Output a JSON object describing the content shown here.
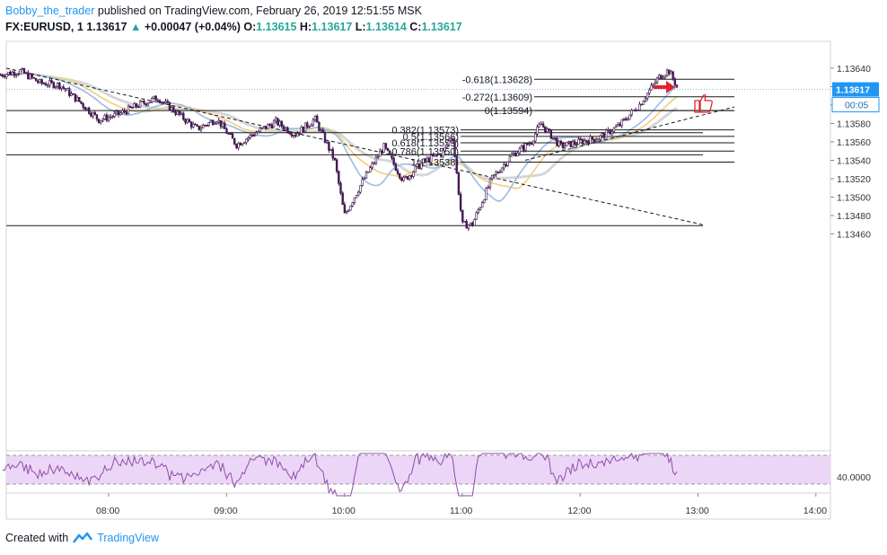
{
  "header": {
    "author": "Bobby_the_trader",
    "published": "published on TradingView.com, February 26, 2019 12:51:55 MSK",
    "symbol": "FX:EURUSD, 1",
    "last": "1.13617",
    "change": "+0.00047 (+0.04%)",
    "o_label": "O:",
    "o_value": "1.13615",
    "h_label": "H:",
    "h_value": "1.13617",
    "l_label": "L:",
    "l_value": "1.13614",
    "c_label": "C:",
    "c_value": "1.13617"
  },
  "footer": {
    "created_with": "Created with",
    "brand": "TradingView"
  },
  "chart_data": {
    "type": "candlestick",
    "price_axis": {
      "ticks": [
        "1.13640",
        "1.13620",
        "1.13600",
        "1.13580",
        "1.13560",
        "1.13540",
        "1.13520",
        "1.13500",
        "1.13480",
        "1.13460"
      ],
      "range": [
        1.1345,
        1.1365
      ],
      "last_price_label": "1.13617",
      "countdown_label": "00:05"
    },
    "time_axis": {
      "ticks": [
        "08:00",
        "09:00",
        "10:00",
        "11:00",
        "12:00",
        "13:00",
        "14:00"
      ]
    },
    "fib_levels": [
      {
        "label": "-0.618(1.13628)",
        "price": 1.13628
      },
      {
        "label": "-0.272(1.13609)",
        "price": 1.13609
      },
      {
        "label": "0(1.13594)",
        "price": 1.13594
      },
      {
        "label": "0.382(1.13573)",
        "price": 1.13573
      },
      {
        "label": "0.5(1.13566)",
        "price": 1.13566
      },
      {
        "label": "0.618(1.13559)",
        "price": 1.13559
      },
      {
        "label": "0.786(1.13550)",
        "price": 1.1355
      },
      {
        "label": "1(1.13538)",
        "price": 1.13538
      }
    ],
    "horizontal_lines": [
      1.13594,
      1.1357,
      1.13546,
      1.13469
    ],
    "close_path": [
      [
        "07:05",
        1.13633
      ],
      [
        "07:15",
        1.13637
      ],
      [
        "07:25",
        1.13624
      ],
      [
        "07:35",
        1.13622
      ],
      [
        "07:45",
        1.13604
      ],
      [
        "07:55",
        1.13584
      ],
      [
        "08:05",
        1.1359
      ],
      [
        "08:15",
        1.136
      ],
      [
        "08:25",
        1.13608
      ],
      [
        "08:35",
        1.13591
      ],
      [
        "08:45",
        1.13574
      ],
      [
        "08:55",
        1.13585
      ],
      [
        "09:05",
        1.13557
      ],
      [
        "09:15",
        1.1357
      ],
      [
        "09:25",
        1.13582
      ],
      [
        "09:35",
        1.13568
      ],
      [
        "09:45",
        1.13585
      ],
      [
        "09:55",
        1.1354
      ],
      [
        "10:00",
        1.1348
      ],
      [
        "10:10",
        1.1352
      ],
      [
        "10:20",
        1.13555
      ],
      [
        "10:30",
        1.13518
      ],
      [
        "10:40",
        1.13538
      ],
      [
        "10:50",
        1.13548
      ],
      [
        "10:55",
        1.13568
      ],
      [
        "11:00",
        1.1347
      ],
      [
        "11:05",
        1.1347
      ],
      [
        "11:15",
        1.1352
      ],
      [
        "11:25",
        1.13545
      ],
      [
        "11:35",
        1.1356
      ],
      [
        "11:40",
        1.1358
      ],
      [
        "11:50",
        1.13555
      ],
      [
        "12:00",
        1.1356
      ],
      [
        "12:10",
        1.13565
      ],
      [
        "12:20",
        1.13578
      ],
      [
        "12:30",
        1.136
      ],
      [
        "12:40",
        1.1363
      ],
      [
        "12:45",
        1.13638
      ],
      [
        "12:50",
        1.13617
      ]
    ],
    "rsi": {
      "label": "40.0000",
      "upper": 70,
      "lower": 30
    },
    "annotations": [
      "down-trendline",
      "up-trendline",
      "red-arrow",
      "thumbs-up"
    ]
  },
  "colors": {
    "up_candle": "#ffffff",
    "down_candle": "#4a1e5c",
    "wick": "#3a1548",
    "ma_blue": "#9bbbe6",
    "ma_orange": "#f2cd7c",
    "ma_gray": "#d6d6d6",
    "rsi_band": "#ecd6f7",
    "rsi_line": "#8e4ea8",
    "last_price_bg": "#2196f3",
    "arrow": "#e3212b"
  }
}
